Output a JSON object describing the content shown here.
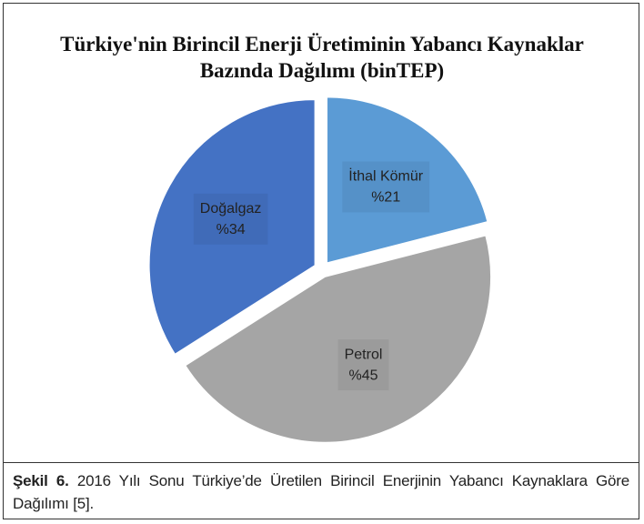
{
  "chart_data": {
    "type": "pie",
    "title": "Türkiye'nin Birincil Enerji Üretiminin Yabancı Kaynaklar Bazında Dağılımı (binTEP)",
    "categories": [
      "İthal Kömür",
      "Petrol",
      "Doğalgaz"
    ],
    "values": [
      21,
      45,
      34
    ],
    "value_labels": [
      "%21",
      "%45",
      "%34"
    ],
    "colors": [
      "#5b9bd5",
      "#a5a5a5",
      "#4472c4"
    ]
  },
  "caption": {
    "label": "Şekil 6.",
    "text": "2016 Yılı Sonu Türkiye’de Üretilen Birincil Enerjinin Yabancı Kaynaklara Göre Dağılımı [5]."
  }
}
